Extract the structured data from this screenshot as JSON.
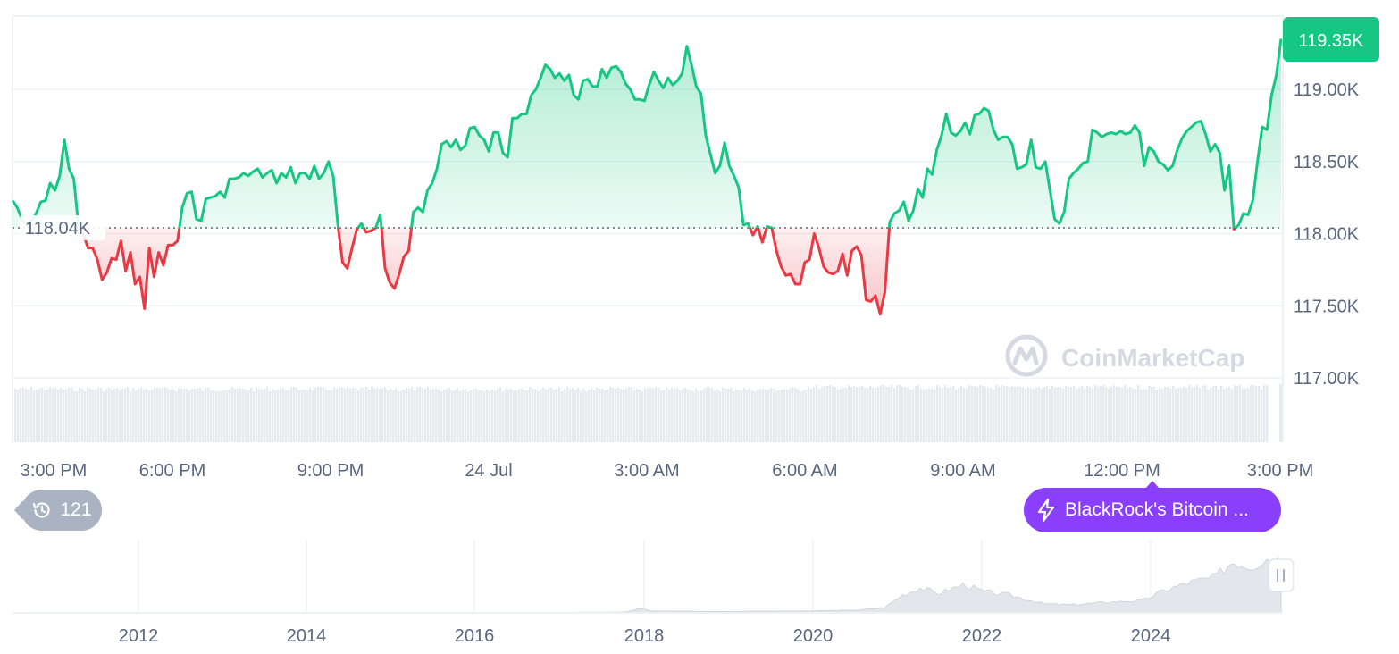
{
  "chart_data": {
    "type": "line",
    "baseline_value": 118040,
    "baseline_label": "118.04K",
    "current_label": "119.35K",
    "y_ticks": [
      {
        "value": 119000,
        "label": "119.00K"
      },
      {
        "value": 118500,
        "label": "118.50K"
      },
      {
        "value": 118000,
        "label": "118.00K"
      },
      {
        "value": 117500,
        "label": "117.50K"
      },
      {
        "value": 117000,
        "label": "117.00K"
      }
    ],
    "ylim": [
      116990,
      119500
    ],
    "x_ticks": [
      "3:00 PM",
      "6:00 PM",
      "9:00 PM",
      "24 Jul",
      "3:00 AM",
      "6:00 AM",
      "9:00 AM",
      "12:00 PM",
      "3:00 PM"
    ],
    "series": [
      {
        "values": [
          118230,
          118180,
          118100,
          118060,
          118090,
          118140,
          118220,
          118230,
          118350,
          118300,
          118400,
          118650,
          118450,
          118380,
          118050,
          118000,
          117900,
          117900,
          117820,
          117680,
          117730,
          117830,
          117820,
          117950,
          117740,
          117870,
          117650,
          117700,
          117480,
          117900,
          117700,
          117870,
          117780,
          117920,
          117920,
          117950,
          118180,
          118280,
          118290,
          118100,
          118090,
          118240,
          118250,
          118260,
          118290,
          118250,
          118380,
          118380,
          118390,
          118420,
          118400,
          118430,
          118450,
          118390,
          118420,
          118440,
          118350,
          118420,
          118390,
          118460,
          118350,
          118420,
          118420,
          118380,
          118470,
          118380,
          118420,
          118500,
          118400,
          118060,
          117800,
          117760,
          117900,
          118030,
          118070,
          118010,
          118020,
          118040,
          118130,
          117760,
          117660,
          117620,
          117720,
          117840,
          117880,
          118150,
          118180,
          118150,
          118300,
          118350,
          118450,
          118620,
          118640,
          118600,
          118650,
          118580,
          118610,
          118730,
          118740,
          118680,
          118650,
          118570,
          118700,
          118700,
          118560,
          118530,
          118800,
          118800,
          118830,
          118830,
          118960,
          119000,
          119080,
          119170,
          119140,
          119080,
          119110,
          119060,
          119100,
          118960,
          118930,
          119060,
          119070,
          119020,
          119020,
          119140,
          119080,
          119150,
          119160,
          119120,
          119040,
          119000,
          118930,
          118930,
          118920,
          119030,
          119120,
          119060,
          119010,
          119080,
          119030,
          119060,
          119110,
          119300,
          119170,
          119020,
          118970,
          118680,
          118550,
          118420,
          118470,
          118630,
          118470,
          118400,
          118320,
          118060,
          118070,
          117990,
          118050,
          117940,
          118050,
          118040,
          117880,
          117770,
          117710,
          117720,
          117650,
          117650,
          117800,
          117820,
          118000,
          117900,
          117770,
          117730,
          117720,
          117740,
          117860,
          117710,
          117880,
          117910,
          117850,
          117540,
          117530,
          117570,
          117440,
          117600,
          118080,
          118140,
          118160,
          118220,
          118090,
          118160,
          118310,
          118250,
          118450,
          118410,
          118580,
          118680,
          118830,
          118700,
          118680,
          118710,
          118770,
          118690,
          118820,
          118830,
          118870,
          118850,
          118720,
          118650,
          118670,
          118670,
          118620,
          118450,
          118460,
          118480,
          118650,
          118460,
          118450,
          118500,
          118300,
          118100,
          118070,
          118150,
          118380,
          118420,
          118450,
          118490,
          118500,
          118720,
          118700,
          118670,
          118690,
          118700,
          118690,
          118710,
          118690,
          118700,
          118750,
          118700,
          118470,
          118600,
          118570,
          118500,
          118480,
          118440,
          118470,
          118580,
          118660,
          118710,
          118740,
          118770,
          118780,
          118690,
          118570,
          118620,
          118560,
          118300,
          118470,
          118030,
          118060,
          118140,
          118130,
          118230,
          118500,
          118740,
          118720,
          118960,
          119100,
          119350
        ]
      }
    ],
    "brush": {
      "x_ticks": [
        "2012",
        "2014",
        "2016",
        "2018",
        "2020",
        "2022",
        "2024"
      ]
    }
  },
  "watermark": {
    "brand": "CoinMarketCap",
    "icon": "coinmarketcap-logo-icon"
  },
  "history_badge": {
    "count": "121",
    "icon": "history-clock-icon"
  },
  "news": {
    "label": "BlackRock's Bitcoin ...",
    "icon": "lightning-bolt-icon"
  },
  "colors": {
    "up": "#16c784",
    "down": "#ea3943",
    "up_fill_top": "#16c784",
    "down_fill": "#ea3943",
    "badge": "#16c784",
    "grid": "#eff2f5",
    "volume": "#e6e9ee",
    "history": "#aab3c2",
    "news": "#8a3ffc"
  }
}
